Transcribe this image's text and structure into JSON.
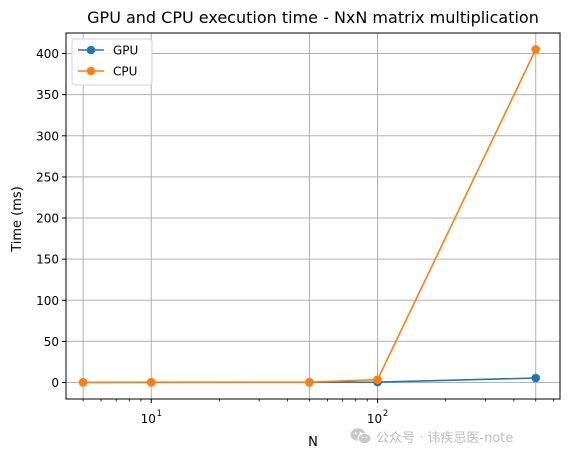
{
  "chart_data": {
    "type": "line",
    "title": "GPU and CPU execution time - NxN matrix multiplication",
    "xlabel": "N",
    "ylabel": "Time (ms)",
    "xscale": "log",
    "xlim": [
      4.2,
      640
    ],
    "ylim": [
      -20,
      425
    ],
    "x": [
      5,
      10,
      50,
      100,
      500
    ],
    "xticks": [
      {
        "value": 10,
        "label": "10",
        "exp": "1"
      },
      {
        "value": 100,
        "label": "10",
        "exp": "2"
      }
    ],
    "yticks": [
      0,
      50,
      100,
      150,
      200,
      250,
      300,
      350,
      400
    ],
    "grid": true,
    "legend_position": "top-left",
    "series": [
      {
        "name": "GPU",
        "color": "#1f77b4",
        "values": [
          0.2,
          0.2,
          0.3,
          0.5,
          5.5
        ]
      },
      {
        "name": "CPU",
        "color": "#ff7f0e",
        "values": [
          0.3,
          0.4,
          0.5,
          3.5,
          405
        ]
      }
    ]
  },
  "watermark": {
    "text": "公众号 · 讳疾忌医-note",
    "icon": "wechat-icon"
  }
}
